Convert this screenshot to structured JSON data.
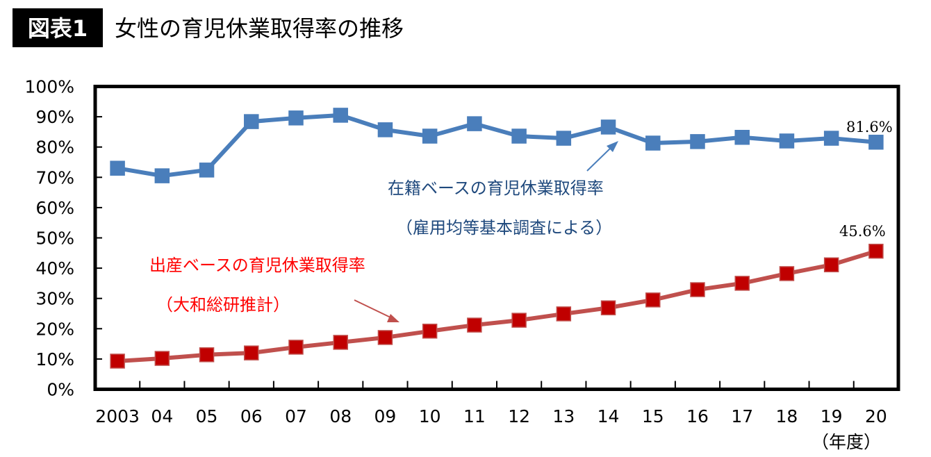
{
  "header": {
    "badge": "図表1",
    "title": "女性の育児休業取得率の推移"
  },
  "colors": {
    "blue": "#4a7ebb",
    "red": "#c00000",
    "red_line": "#c0504d",
    "blue_text": "#1f497d",
    "red_text": "#ff0000"
  },
  "chart_data": {
    "type": "line",
    "title": "女性の育児休業取得率の推移",
    "xlabel": "（年度）",
    "ylabel": "",
    "ylim": [
      0,
      100
    ],
    "yticks": [
      "0%",
      "10%",
      "20%",
      "30%",
      "40%",
      "50%",
      "60%",
      "70%",
      "80%",
      "90%",
      "100%"
    ],
    "categories": [
      "2003",
      "04",
      "05",
      "06",
      "07",
      "08",
      "09",
      "10",
      "11",
      "12",
      "13",
      "14",
      "15",
      "16",
      "17",
      "18",
      "19",
      "20"
    ],
    "grid": false,
    "series": [
      {
        "name": "在籍ベースの育児休業取得率",
        "note": "（雇用均等基本調査による）",
        "values": [
          73.0,
          70.5,
          72.4,
          88.4,
          89.6,
          90.5,
          85.7,
          83.6,
          87.7,
          83.6,
          82.9,
          86.6,
          81.3,
          81.8,
          83.2,
          82.0,
          82.9,
          81.6
        ],
        "last_label": "81.6%"
      },
      {
        "name": "出産ベースの育児休業取得率",
        "note": "（大和総研推計）",
        "values": [
          9.3,
          10.2,
          11.4,
          12.0,
          13.9,
          15.5,
          17.1,
          19.2,
          21.2,
          22.8,
          24.9,
          26.9,
          29.5,
          32.9,
          35.0,
          38.2,
          41.1,
          45.6
        ],
        "last_label": "45.6%"
      }
    ]
  }
}
